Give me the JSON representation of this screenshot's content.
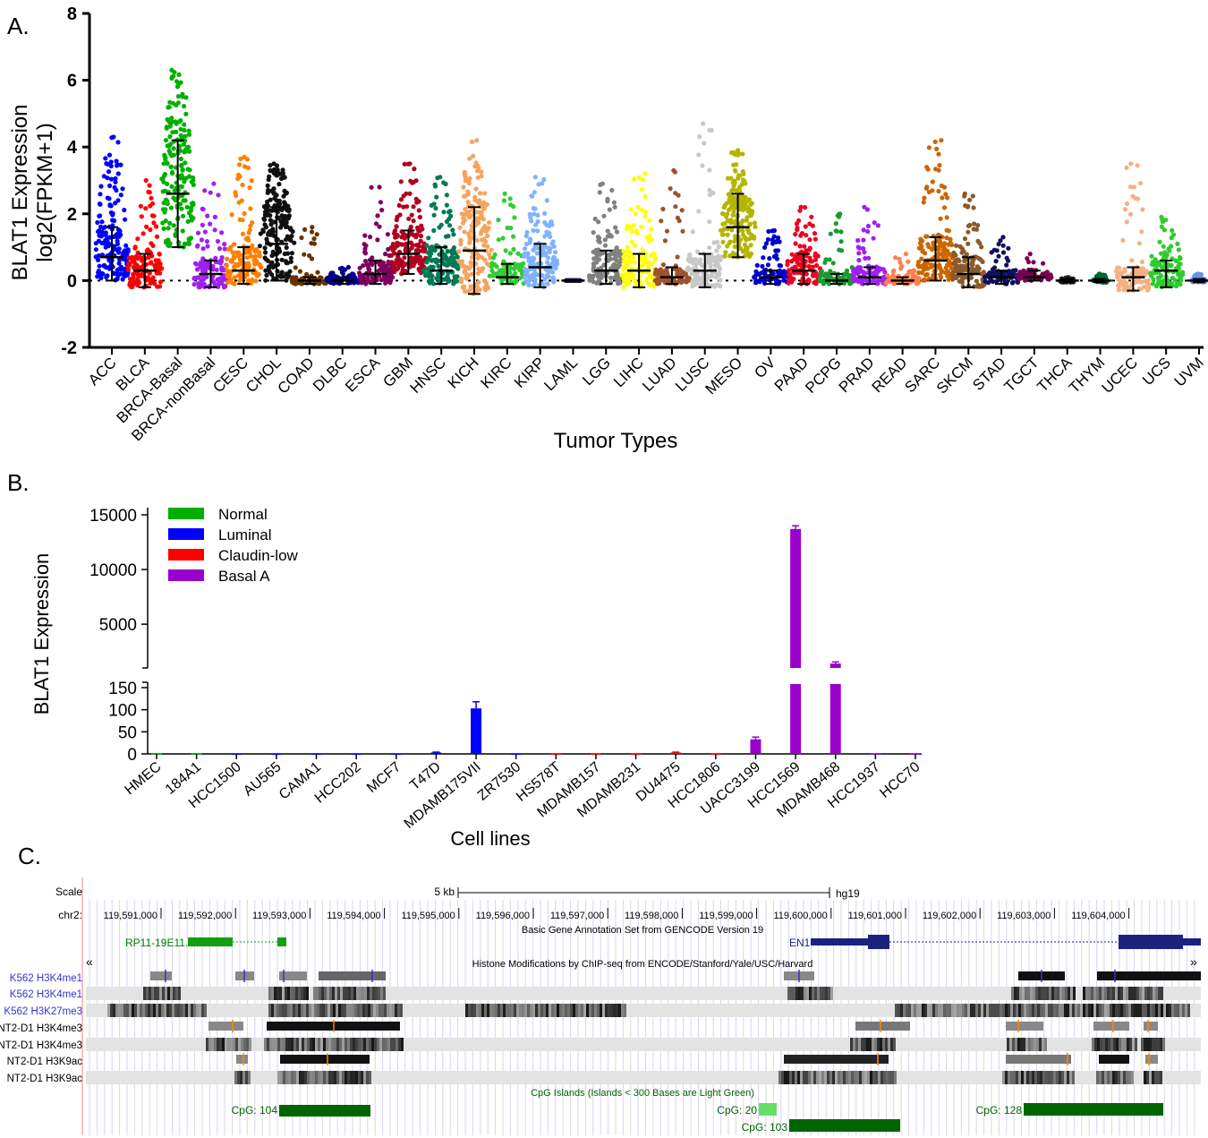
{
  "panels": {
    "a": "A.",
    "b": "B.",
    "c": "C."
  },
  "colors": {
    "green": "#00b000",
    "blue": "#0000ff",
    "red": "#ff0000",
    "purple": "#9900cc",
    "navy": "#1a237e",
    "track_green": "#006400",
    "ucsc_blue": "#3333cc"
  },
  "chart_data": [
    {
      "id": "panel-a",
      "type": "scatter",
      "title": "",
      "xlabel": "Tumor Types",
      "ylabel": [
        "BLAT1 Expression",
        "log2(FPKM+1)"
      ],
      "ylim": [
        -2,
        8
      ],
      "yticks": [
        -2,
        0,
        2,
        4,
        6,
        8
      ],
      "reference_line": 0,
      "series": [
        {
          "name": "ACC",
          "median": 0.7,
          "q1": 0.0,
          "q3": 1.6,
          "max": 4.3,
          "color": "#0000ff"
        },
        {
          "name": "BLCA",
          "median": 0.3,
          "q1": -0.2,
          "q3": 0.8,
          "max": 3.0,
          "color": "#ff0000"
        },
        {
          "name": "BRCA-Basal",
          "median": 2.6,
          "q1": 1.0,
          "q3": 4.2,
          "max": 6.3,
          "color": "#00b000"
        },
        {
          "name": "BRCA-nonBasal",
          "median": 0.2,
          "q1": -0.2,
          "q3": 0.6,
          "max": 2.9,
          "color": "#a020f0"
        },
        {
          "name": "CESC",
          "median": 0.3,
          "q1": -0.1,
          "q3": 1.0,
          "max": 3.7,
          "color": "#ff8000"
        },
        {
          "name": "CHOL",
          "median": 1.1,
          "q1": 0.0,
          "q3": 2.2,
          "max": 3.5,
          "color": "#111111"
        },
        {
          "name": "COAD",
          "median": 0.0,
          "q1": -0.1,
          "q3": 0.1,
          "max": 1.6,
          "color": "#663300"
        },
        {
          "name": "DLBC",
          "median": 0.0,
          "q1": -0.1,
          "q3": 0.1,
          "max": 0.4,
          "color": "#00008b"
        },
        {
          "name": "ESCA",
          "median": 0.2,
          "q1": -0.1,
          "q3": 0.6,
          "max": 2.8,
          "color": "#800060"
        },
        {
          "name": "GBM",
          "median": 0.8,
          "q1": 0.2,
          "q3": 1.5,
          "max": 3.5,
          "color": "#b00020"
        },
        {
          "name": "HNSC",
          "median": 0.3,
          "q1": -0.1,
          "q3": 1.0,
          "max": 3.1,
          "color": "#007a55"
        },
        {
          "name": "KICH",
          "median": 0.9,
          "q1": -0.4,
          "q3": 2.2,
          "max": 4.2,
          "color": "#f4a460"
        },
        {
          "name": "KIRC",
          "median": 0.1,
          "q1": -0.1,
          "q3": 0.5,
          "max": 2.6,
          "color": "#33cc33"
        },
        {
          "name": "KIRP",
          "median": 0.4,
          "q1": -0.2,
          "q3": 1.1,
          "max": 3.1,
          "color": "#7fb3ff"
        },
        {
          "name": "LAML",
          "median": 0.0,
          "q1": 0.0,
          "q3": 0.0,
          "max": 0.0,
          "color": "#1a1a4d"
        },
        {
          "name": "LGG",
          "median": 0.3,
          "q1": -0.1,
          "q3": 0.9,
          "max": 2.9,
          "color": "#808080"
        },
        {
          "name": "LIHC",
          "median": 0.3,
          "q1": -0.2,
          "q3": 0.8,
          "max": 3.2,
          "color": "#ffff00"
        },
        {
          "name": "LUAD",
          "median": 0.1,
          "q1": -0.1,
          "q3": 0.4,
          "max": 3.3,
          "color": "#a0522d"
        },
        {
          "name": "LUSC",
          "median": 0.3,
          "q1": -0.2,
          "q3": 0.8,
          "max": 4.7,
          "color": "#c8c8c8"
        },
        {
          "name": "MESO",
          "median": 1.6,
          "q1": 0.7,
          "q3": 2.6,
          "max": 3.9,
          "color": "#b5b500"
        },
        {
          "name": "OV",
          "median": 0.1,
          "q1": -0.1,
          "q3": 0.3,
          "max": 1.5,
          "color": "#0000cd"
        },
        {
          "name": "PAAD",
          "median": 0.3,
          "q1": -0.1,
          "q3": 0.8,
          "max": 2.2,
          "color": "#ee0022"
        },
        {
          "name": "PCPG",
          "median": 0.0,
          "q1": -0.1,
          "q3": 0.2,
          "max": 2.0,
          "color": "#1a9930"
        },
        {
          "name": "PRAD",
          "median": 0.1,
          "q1": -0.1,
          "q3": 0.4,
          "max": 2.2,
          "color": "#a020f0"
        },
        {
          "name": "READ",
          "median": 0.0,
          "q1": -0.1,
          "q3": 0.1,
          "max": 0.8,
          "color": "#ff7f50"
        },
        {
          "name": "SARC",
          "median": 0.6,
          "q1": 0.0,
          "q3": 1.3,
          "max": 4.2,
          "color": "#cc6600"
        },
        {
          "name": "SKCM",
          "median": 0.2,
          "q1": -0.2,
          "q3": 0.7,
          "max": 2.6,
          "color": "#8b5a2b"
        },
        {
          "name": "STAD",
          "median": 0.1,
          "q1": -0.1,
          "q3": 0.3,
          "max": 1.3,
          "color": "#101060"
        },
        {
          "name": "TGCT",
          "median": 0.1,
          "q1": 0.0,
          "q3": 0.3,
          "max": 0.8,
          "color": "#7a0050"
        },
        {
          "name": "THCA",
          "median": 0.0,
          "q1": -0.05,
          "q3": 0.05,
          "max": 0.1,
          "color": "#222222"
        },
        {
          "name": "THYM",
          "median": 0.0,
          "q1": -0.05,
          "q3": 0.05,
          "max": 0.2,
          "color": "#006633"
        },
        {
          "name": "UCEC",
          "median": 0.1,
          "q1": -0.3,
          "q3": 0.4,
          "max": 3.5,
          "color": "#f4b183"
        },
        {
          "name": "UCS",
          "median": 0.3,
          "q1": -0.2,
          "q3": 0.6,
          "max": 1.9,
          "color": "#2ecc2e"
        },
        {
          "name": "UVM",
          "median": 0.0,
          "q1": -0.05,
          "q3": 0.05,
          "max": 0.2,
          "color": "#6495ed"
        }
      ]
    },
    {
      "id": "panel-b",
      "type": "bar",
      "title": "",
      "xlabel": "Cell lines",
      "ylabel": "BLAT1 Expression",
      "axis_break": true,
      "ylim_lower": [
        0,
        150
      ],
      "ylim_upper": [
        0,
        15000
      ],
      "yticks_lower": [
        0,
        50,
        100,
        150
      ],
      "yticks_upper": [
        5000,
        10000,
        15000
      ],
      "legend": [
        {
          "label": "Normal",
          "color": "#00b000"
        },
        {
          "label": "Luminal",
          "color": "#0000ff"
        },
        {
          "label": "Claudin-low",
          "color": "#ff0000"
        },
        {
          "label": "Basal A",
          "color": "#9900cc"
        }
      ],
      "legend_placement": "top-left",
      "categories": [
        "HMEC",
        "184A1",
        "HCC1500",
        "AU565",
        "CAMA1",
        "HCC202",
        "MCF7",
        "T47D",
        "MDAMB175VII",
        "ZR7530",
        "HS578T",
        "MDAMB157",
        "MDAMB231",
        "DU4475",
        "HCC1806",
        "UACC3199",
        "HCC1569",
        "MDAMB468",
        "HCC1937",
        "HCC70"
      ],
      "values": [
        1,
        1,
        1,
        1,
        1,
        1,
        1,
        3,
        103,
        1,
        1,
        1,
        1,
        3,
        1,
        33,
        13700,
        1400,
        1,
        1
      ],
      "errors": [
        0,
        0,
        0,
        0,
        0,
        0,
        0,
        1,
        15,
        0,
        0,
        0,
        0,
        1,
        0,
        5,
        300,
        150,
        0,
        0
      ],
      "groups": [
        "Normal",
        "Normal",
        "Luminal",
        "Luminal",
        "Luminal",
        "Luminal",
        "Luminal",
        "Luminal",
        "Luminal",
        "Luminal",
        "Claudin-low",
        "Claudin-low",
        "Claudin-low",
        "Claudin-low",
        "Claudin-low",
        "Basal A",
        "Basal A",
        "Basal A",
        "Basal A",
        "Basal A"
      ]
    }
  ],
  "browser": {
    "scale_label": "Scale",
    "chr_label": "chr2:",
    "scale_bar_label": "5 kb",
    "assembly": "hg19",
    "coords": [
      "119,591,000",
      "119,592,000",
      "119,593,000",
      "119,594,000",
      "119,595,000",
      "119,596,000",
      "119,597,000",
      "119,598,000",
      "119,599,000",
      "119,600,000",
      "119,601,000",
      "119,602,000",
      "119,603,000",
      "119,604,000"
    ],
    "gencode_title": "Basic Gene Annotation Set from GENCODE Version 19",
    "genes": [
      "RP11-19E11.1",
      "EN1"
    ],
    "histone_title": "Histone Modifications by ChIP-seq from ENCODE/Stanford/Yale/USC/Harvard",
    "tracks": [
      "K562 H3K4me1",
      "K562 H3K4me1",
      "K562 H3K27me3",
      "NT2-D1 H3K4me3",
      "NT2-D1 H3K4me3",
      "NT2-D1 H3K9ac",
      "NT2-D1 H3K9ac"
    ],
    "cpg_title": "CpG Islands (Islands < 300 Bases are Light Green)",
    "cpg": [
      "CpG: 104",
      "CpG: 20",
      "CpG: 103",
      "CpG: 128"
    ]
  }
}
